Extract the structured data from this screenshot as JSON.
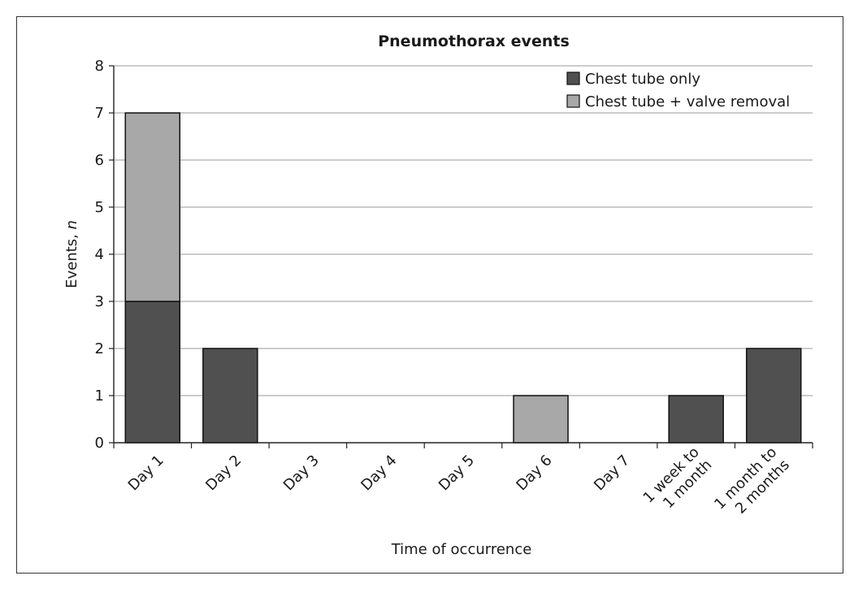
{
  "chart_data": {
    "type": "bar",
    "stacked": true,
    "title": "Pneumothorax events",
    "xlabel": "Time of occurrence",
    "ylabel_main": "Events, ",
    "ylabel_italic": "n",
    "ylim": [
      0,
      8
    ],
    "yticks": [
      0,
      1,
      2,
      3,
      4,
      5,
      6,
      7,
      8
    ],
    "grid": true,
    "legend_position": "top-right",
    "categories": [
      [
        "Day 1"
      ],
      [
        "Day 2"
      ],
      [
        "Day 3"
      ],
      [
        "Day 4"
      ],
      [
        "Day 5"
      ],
      [
        "Day 6"
      ],
      [
        "Day 7"
      ],
      [
        "1 week to",
        "1 month"
      ],
      [
        "1 month to",
        "2 months"
      ]
    ],
    "series": [
      {
        "name": "Chest tube only",
        "color": "#505050",
        "values": [
          3,
          2,
          0,
          0,
          0,
          0,
          0,
          1,
          2
        ]
      },
      {
        "name": "Chest tube + valve removal",
        "color": "#a8a8a8",
        "values": [
          4,
          0,
          0,
          0,
          0,
          1,
          0,
          0,
          0
        ]
      }
    ]
  }
}
